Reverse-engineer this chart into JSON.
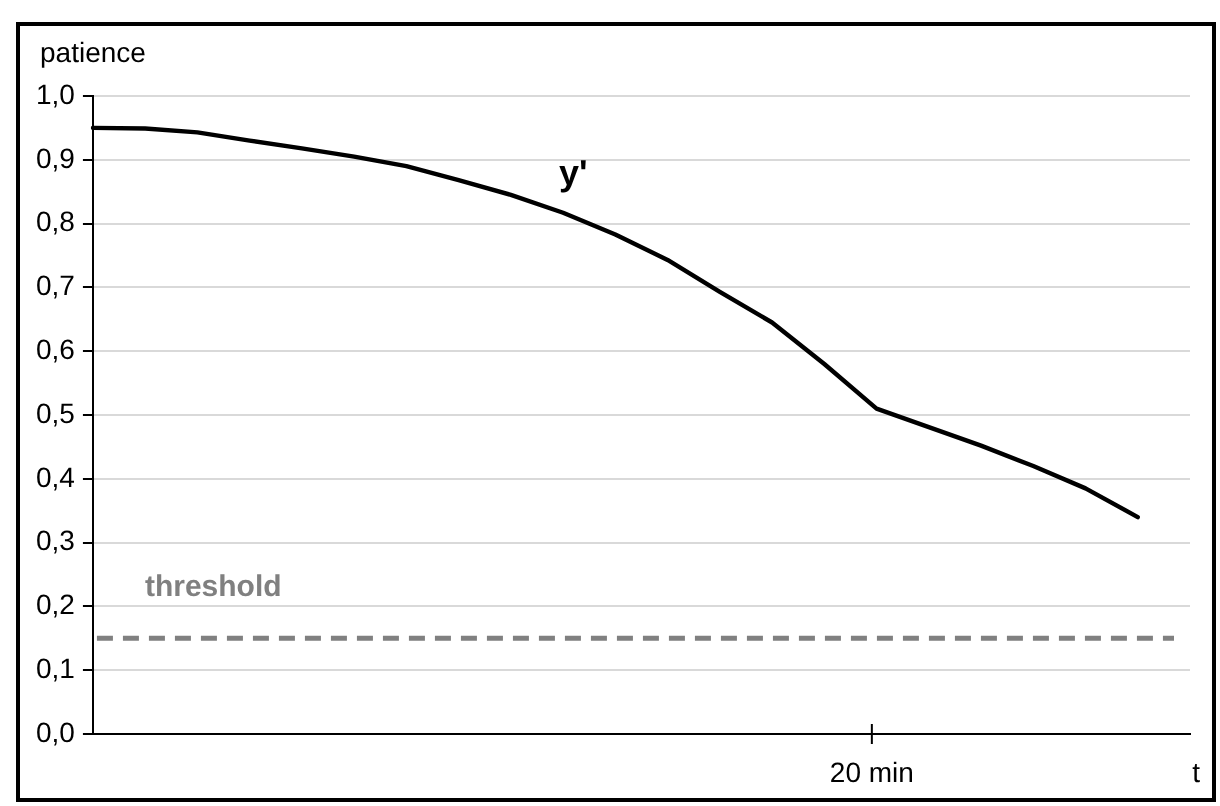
{
  "chart_data": {
    "type": "line",
    "ylabel": "patience",
    "xlabel": "t",
    "categories": [
      null,
      null,
      null,
      null,
      null,
      null,
      null,
      null,
      null,
      null,
      null,
      null,
      null,
      null,
      null,
      null,
      null,
      null,
      null,
      null,
      null,
      null
    ],
    "series": [
      {
        "name": "y'",
        "color": "#000000",
        "values": [
          0.95,
          0.949,
          0.943,
          0.93,
          0.918,
          0.905,
          0.89,
          0.868,
          0.845,
          0.817,
          0.783,
          0.743,
          0.693,
          0.645,
          0.58,
          0.51,
          0.481,
          0.452,
          0.42,
          0.385,
          0.34,
          null
        ]
      }
    ],
    "ylim": [
      0,
      1
    ],
    "yticks": [
      {
        "value": 0,
        "label": "0,0"
      },
      {
        "value": 0.1,
        "label": "0,1"
      },
      {
        "value": 0.2,
        "label": "0,2"
      },
      {
        "value": 0.3,
        "label": "0,3"
      },
      {
        "value": 0.4,
        "label": "0,4"
      },
      {
        "value": 0.5,
        "label": "0,5"
      },
      {
        "value": 0.6,
        "label": "0,6"
      },
      {
        "value": 0.7,
        "label": "0,7"
      },
      {
        "value": 0.8,
        "label": "0,8"
      },
      {
        "value": 0.9,
        "label": "0,9"
      },
      {
        "value": 1,
        "label": "1,0"
      }
    ],
    "annotations": [
      "20 min"
    ],
    "ref_lines": [
      {
        "axis": "y",
        "value": 0.15,
        "label": "threshold",
        "color": "#808080",
        "line_style": "dashed"
      }
    ],
    "grid": "y",
    "legend": false,
    "marker": "none",
    "line_style": "solid"
  }
}
